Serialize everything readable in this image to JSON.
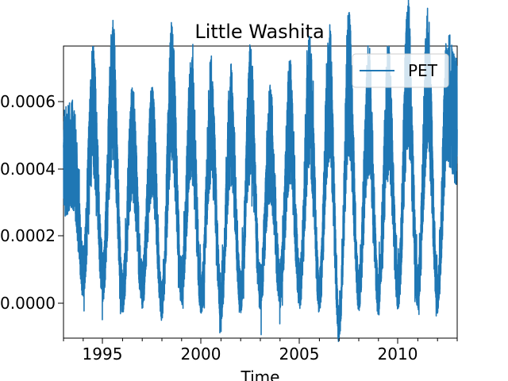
{
  "chart_data": {
    "type": "line",
    "title": "Little Washita",
    "xlabel": "Time",
    "ylabel": "",
    "x_ticks": [
      "1995",
      "2000",
      "2005",
      "2010"
    ],
    "y_ticks": [
      "0.0000",
      "0.0002",
      "0.0004",
      "0.0006"
    ],
    "xlim": [
      1993.0,
      2013.0
    ],
    "ylim": [
      -0.00011,
      0.00077
    ],
    "grid": false,
    "legend_position": "top-right",
    "series": [
      {
        "name": "PET",
        "color": "#1f77b4",
        "approx_daily_series": true,
        "x": [
          1993.0,
          1993.5,
          1994.0,
          1994.5,
          1995.0,
          1995.5,
          1996.0,
          1996.5,
          1997.0,
          1997.5,
          1998.0,
          1998.5,
          1999.0,
          1999.5,
          2000.0,
          2000.5,
          2001.0,
          2001.5,
          2002.0,
          2002.5,
          2003.0,
          2003.5,
          2004.0,
          2004.5,
          2005.0,
          2005.5,
          2006.0,
          2006.5,
          2007.0,
          2007.5,
          2008.0,
          2008.5,
          2009.0,
          2009.5,
          2010.0,
          2010.5,
          2011.0,
          2011.5,
          2012.0,
          2012.5,
          2013.0
        ],
        "y": [
          0.00042,
          0.00044,
          0.0001,
          0.00058,
          8e-05,
          0.00064,
          3e-05,
          0.00048,
          5e-05,
          0.00048,
          0.0,
          0.00063,
          6e-05,
          0.00056,
          2e-05,
          0.00055,
          0.0,
          0.00053,
          3e-05,
          0.00058,
          4e-05,
          0.00048,
          5e-05,
          0.00054,
          5e-05,
          0.0006,
          3e-05,
          0.00064,
          -7e-05,
          0.00066,
          4e-05,
          0.00058,
          2e-05,
          0.00058,
          4e-05,
          0.00069,
          4e-05,
          0.00066,
          3e-05,
          0.00062,
          0.00054
        ]
      }
    ]
  }
}
